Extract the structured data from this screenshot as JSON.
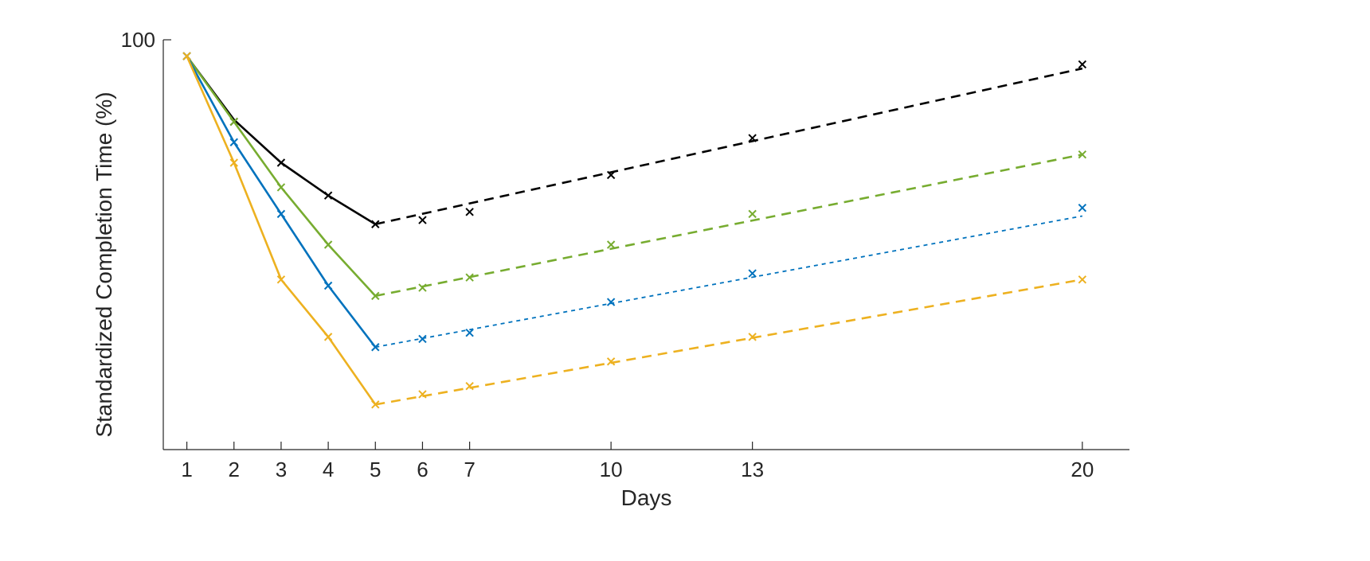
{
  "chart_data": {
    "type": "line",
    "title": "",
    "xlabel": "Days",
    "ylabel": "Standardized Completion Time (%)",
    "xlim": [
      0.5,
      21
    ],
    "ylim": [
      0,
      100
    ],
    "x_ticks": [
      1,
      2,
      3,
      4,
      5,
      6,
      7,
      10,
      13,
      20
    ],
    "y_ticks": [
      100
    ],
    "grid": false,
    "series": [
      {
        "color": "#000000",
        "points": {
          "x": [
            1,
            2,
            3,
            4,
            5,
            6,
            7,
            10,
            13,
            20
          ],
          "y": [
            96,
            80,
            70,
            62,
            55,
            56,
            58,
            67,
            76,
            94
          ]
        },
        "fit_solid": {
          "x": [
            1,
            2,
            3,
            4,
            5
          ],
          "y": [
            96,
            80.5,
            70,
            62,
            55
          ]
        },
        "fit_dashed": {
          "x": [
            5,
            20
          ],
          "y": [
            55,
            93
          ]
        },
        "dash": "long"
      },
      {
        "color": "#77AC30",
        "points": {
          "x": [
            1,
            2,
            3,
            4,
            5,
            6,
            7,
            10,
            13,
            20
          ],
          "y": [
            96,
            80,
            64,
            50,
            37.5,
            39.5,
            42,
            50,
            57.5,
            72
          ]
        },
        "fit_solid": {
          "x": [
            1,
            2,
            3,
            4,
            5
          ],
          "y": [
            96,
            80,
            64,
            50,
            37.5
          ]
        },
        "fit_dashed": {
          "x": [
            5,
            20
          ],
          "y": [
            37.5,
            72
          ]
        },
        "dash": "long"
      },
      {
        "color": "#0072BD",
        "points": {
          "x": [
            1,
            2,
            3,
            4,
            5,
            6,
            7,
            10,
            13,
            20
          ],
          "y": [
            96,
            75,
            57.5,
            40,
            25,
            27,
            28.5,
            36,
            43,
            59
          ]
        },
        "fit_solid": {
          "x": [
            1,
            2,
            3,
            4,
            5
          ],
          "y": [
            96,
            75,
            57.5,
            40,
            25
          ]
        },
        "fit_dashed": {
          "x": [
            5,
            20
          ],
          "y": [
            25,
            57
          ]
        },
        "dash": "short"
      },
      {
        "color": "#EDB120",
        "points": {
          "x": [
            1,
            2,
            3,
            4,
            5,
            6,
            7,
            10,
            13,
            20
          ],
          "y": [
            96,
            70,
            41.5,
            27.5,
            11,
            13.5,
            15.5,
            21.5,
            27.5,
            41.5
          ]
        },
        "fit_solid": {
          "x": [
            1,
            2,
            3,
            4,
            5
          ],
          "y": [
            96,
            70,
            41.5,
            27.5,
            11
          ]
        },
        "fit_dashed": {
          "x": [
            5,
            20
          ],
          "y": [
            11,
            41.5
          ]
        },
        "dash": "long"
      }
    ]
  }
}
